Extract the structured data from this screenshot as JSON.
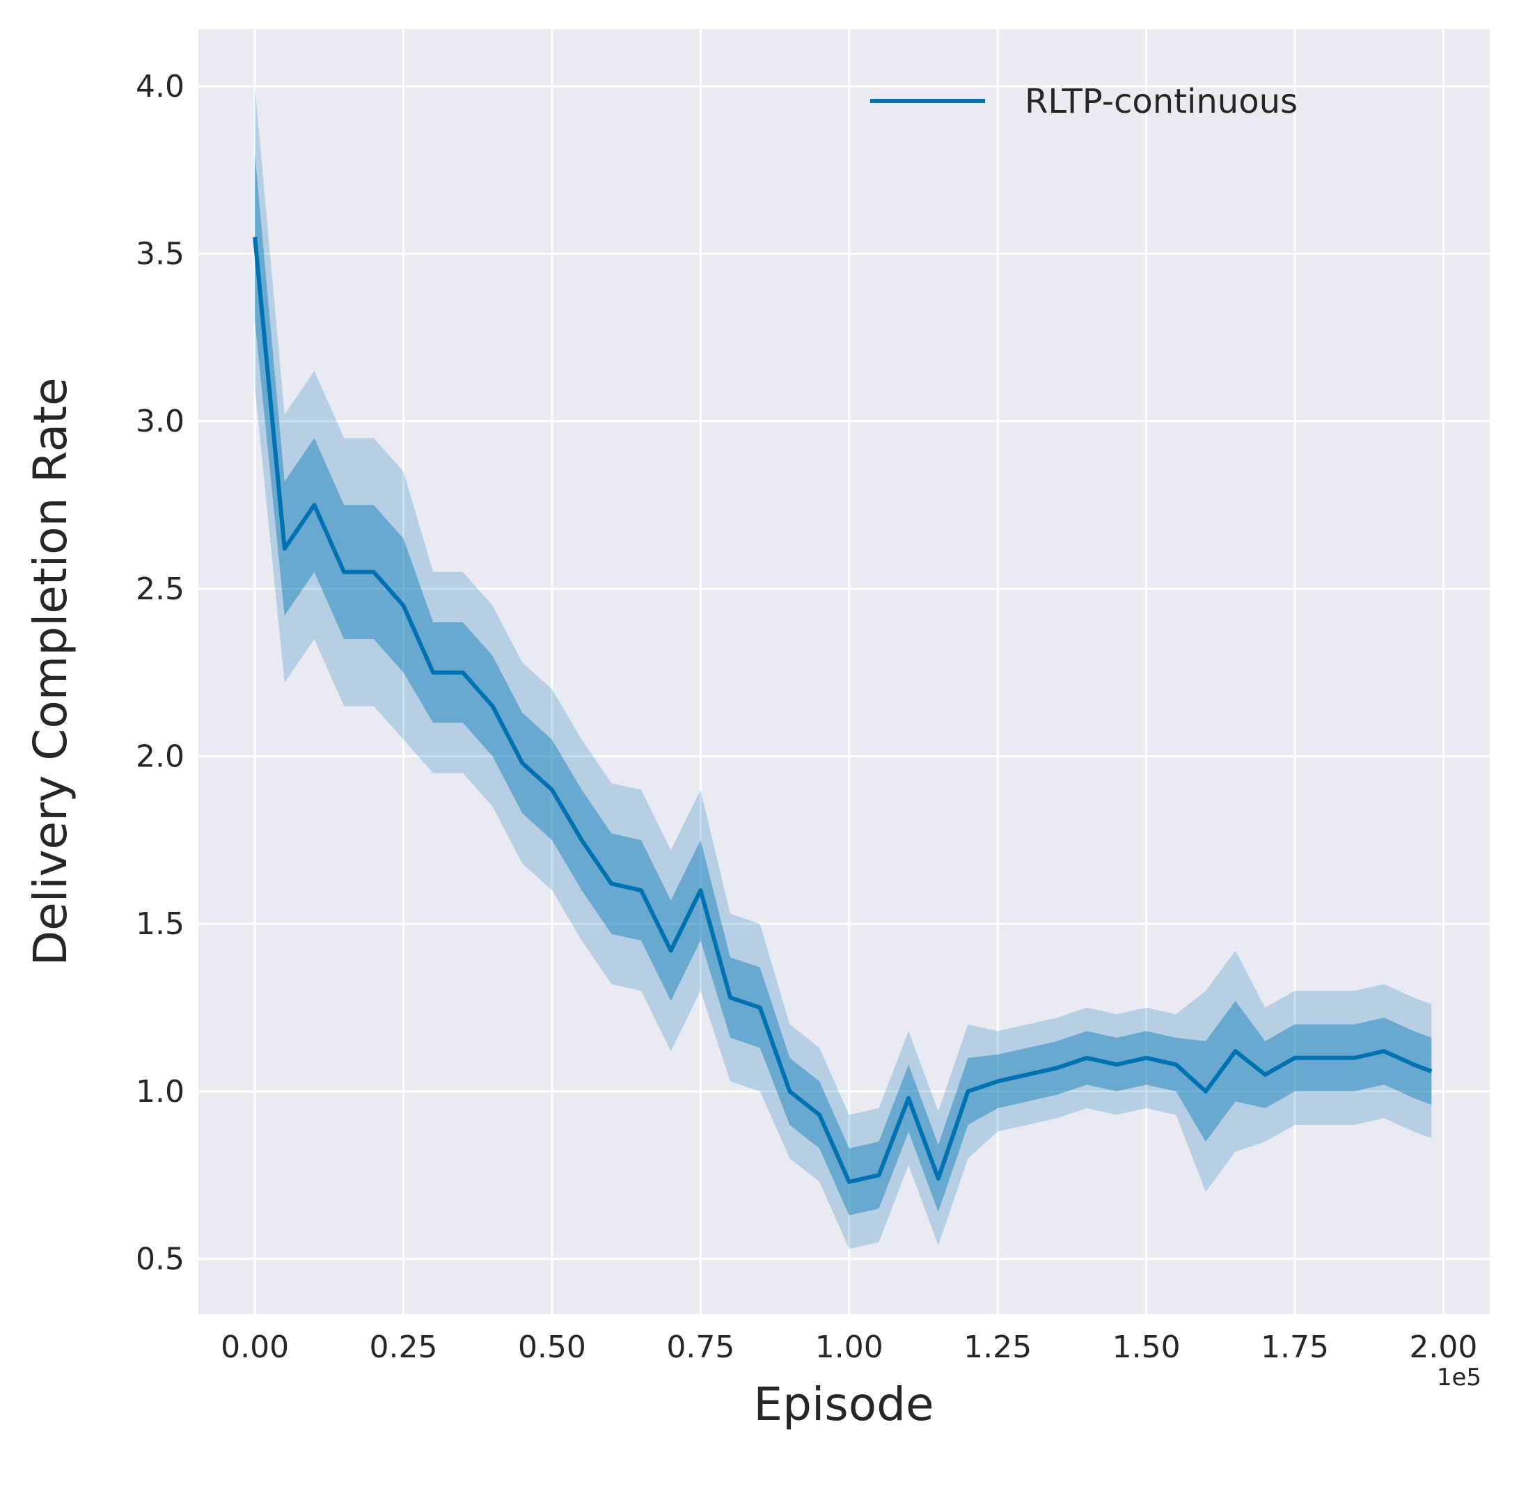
{
  "chart_data": {
    "type": "line",
    "xlabel": "Episode",
    "ylabel": "Delivery Completion Rate",
    "x_offset_label": "1e5",
    "x": [
      0,
      0.05,
      0.1,
      0.15,
      0.2,
      0.25,
      0.3,
      0.35,
      0.4,
      0.45,
      0.5,
      0.55,
      0.6,
      0.65,
      0.7,
      0.75,
      0.8,
      0.85,
      0.9,
      0.95,
      1.0,
      1.05,
      1.1,
      1.15,
      1.2,
      1.25,
      1.3,
      1.35,
      1.4,
      1.45,
      1.5,
      1.55,
      1.6,
      1.65,
      1.7,
      1.75,
      1.8,
      1.85,
      1.9,
      1.95,
      1.98
    ],
    "series": [
      {
        "name": "RLTP-continuous",
        "color": "#0072b2",
        "values": [
          3.55,
          2.62,
          2.75,
          2.55,
          2.55,
          2.45,
          2.25,
          2.25,
          2.15,
          1.98,
          1.9,
          1.75,
          1.62,
          1.6,
          1.42,
          1.6,
          1.28,
          1.25,
          1.0,
          0.93,
          0.73,
          0.75,
          0.98,
          0.74,
          1.0,
          1.03,
          1.05,
          1.07,
          1.1,
          1.08,
          1.1,
          1.08,
          1.0,
          1.12,
          1.05,
          1.1,
          1.1,
          1.1,
          1.12,
          1.08,
          1.06
        ],
        "inner_band": {
          "lower": [
            3.3,
            2.42,
            2.55,
            2.35,
            2.35,
            2.25,
            2.1,
            2.1,
            2.0,
            1.83,
            1.75,
            1.6,
            1.47,
            1.45,
            1.27,
            1.45,
            1.16,
            1.13,
            0.9,
            0.83,
            0.63,
            0.65,
            0.88,
            0.64,
            0.9,
            0.95,
            0.97,
            0.99,
            1.02,
            1.0,
            1.02,
            1.0,
            0.85,
            0.97,
            0.95,
            1.0,
            1.0,
            1.0,
            1.02,
            0.98,
            0.96
          ],
          "upper": [
            3.8,
            2.82,
            2.95,
            2.75,
            2.75,
            2.65,
            2.4,
            2.4,
            2.3,
            2.13,
            2.05,
            1.9,
            1.77,
            1.75,
            1.57,
            1.75,
            1.4,
            1.37,
            1.1,
            1.03,
            0.83,
            0.85,
            1.08,
            0.84,
            1.1,
            1.11,
            1.13,
            1.15,
            1.18,
            1.16,
            1.18,
            1.16,
            1.15,
            1.27,
            1.15,
            1.2,
            1.2,
            1.2,
            1.22,
            1.18,
            1.16
          ]
        },
        "outer_band": {
          "lower": [
            3.1,
            2.22,
            2.35,
            2.15,
            2.15,
            2.05,
            1.95,
            1.95,
            1.85,
            1.68,
            1.6,
            1.45,
            1.32,
            1.3,
            1.12,
            1.3,
            1.03,
            1.0,
            0.8,
            0.73,
            0.53,
            0.55,
            0.78,
            0.54,
            0.8,
            0.88,
            0.9,
            0.92,
            0.95,
            0.93,
            0.95,
            0.93,
            0.7,
            0.82,
            0.85,
            0.9,
            0.9,
            0.9,
            0.92,
            0.88,
            0.86
          ],
          "upper": [
            4.0,
            3.02,
            3.15,
            2.95,
            2.95,
            2.85,
            2.55,
            2.55,
            2.45,
            2.28,
            2.2,
            2.05,
            1.92,
            1.9,
            1.72,
            1.9,
            1.53,
            1.5,
            1.2,
            1.13,
            0.93,
            0.95,
            1.18,
            0.94,
            1.2,
            1.18,
            1.2,
            1.22,
            1.25,
            1.23,
            1.25,
            1.23,
            1.3,
            1.42,
            1.25,
            1.3,
            1.3,
            1.3,
            1.32,
            1.28,
            1.26
          ]
        }
      }
    ],
    "xlim": [
      -0.095,
      2.078
    ],
    "ylim": [
      0.335,
      4.17
    ],
    "xticks": [
      {
        "value": 0,
        "label": "0.00"
      },
      {
        "value": 0.25,
        "label": "0.25"
      },
      {
        "value": 0.5,
        "label": "0.50"
      },
      {
        "value": 0.75,
        "label": "0.75"
      },
      {
        "value": 1,
        "label": "1.00"
      },
      {
        "value": 1.25,
        "label": "1.25"
      },
      {
        "value": 1.5,
        "label": "1.50"
      },
      {
        "value": 1.75,
        "label": "1.75"
      },
      {
        "value": 2,
        "label": "2.00"
      }
    ],
    "yticks": [
      0.5,
      {
        "value": 1,
        "label": "1.0"
      },
      1.5,
      {
        "value": 2,
        "label": "2.0"
      },
      2.5,
      {
        "value": 3,
        "label": "3.0"
      },
      3.5,
      {
        "value": 4,
        "label": "4.0"
      }
    ],
    "grid": true,
    "legend": "upper right"
  }
}
